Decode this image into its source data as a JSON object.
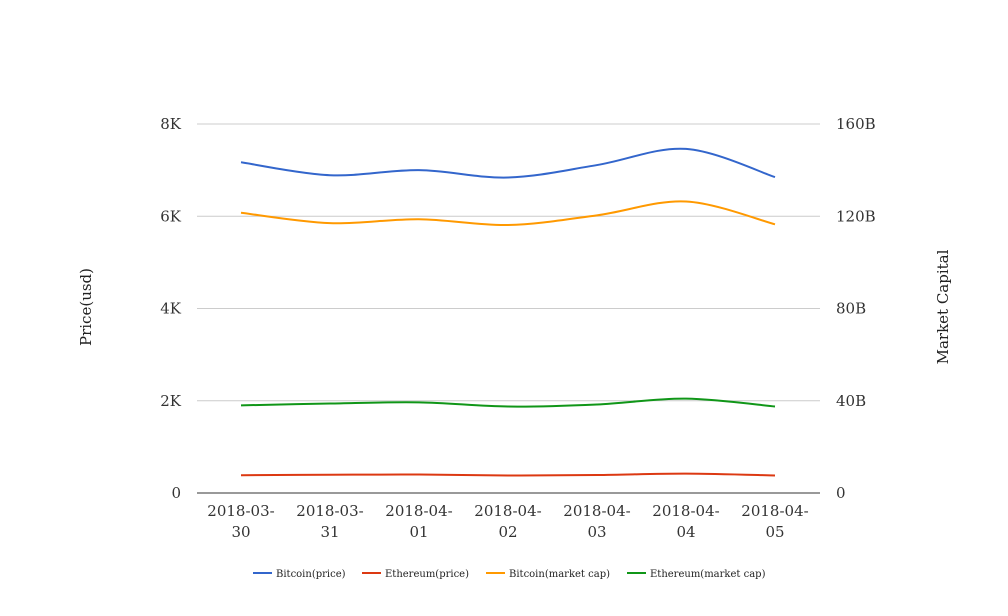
{
  "chart_data": {
    "type": "line",
    "title": "",
    "categories": [
      [
        "2018-03-",
        "30"
      ],
      [
        "2018-03-",
        "31"
      ],
      [
        "2018-04-",
        "01"
      ],
      [
        "2018-04-",
        "02"
      ],
      [
        "2018-04-",
        "03"
      ],
      [
        "2018-04-",
        "04"
      ],
      [
        "2018-04-",
        "05"
      ]
    ],
    "y_left": {
      "label": "Price(usd)",
      "range": [
        0,
        8000
      ],
      "ticks": [
        0,
        2000,
        4000,
        6000,
        8000
      ],
      "tick_labels": [
        "0",
        "2K",
        "4K",
        "6K",
        "8K"
      ]
    },
    "y_right": {
      "label": "Market Capital",
      "range": [
        0,
        160000000000
      ],
      "ticks": [
        0,
        40000000000,
        80000000000,
        120000000000,
        160000000000
      ],
      "tick_labels": [
        "0",
        "40B",
        "80B",
        "120B",
        "160B"
      ]
    },
    "grid": true,
    "legend_position": "bottom",
    "series": [
      {
        "name": "Bitcoin(price)",
        "axis": "left",
        "color": "#3366cc",
        "values": [
          7170,
          6890,
          7000,
          6840,
          7110,
          7460,
          6850
        ]
      },
      {
        "name": "Ethereum(price)",
        "axis": "left",
        "color": "#dc3912",
        "values": [
          385,
          395,
          400,
          380,
          390,
          420,
          380
        ]
      },
      {
        "name": "Bitcoin(market cap)",
        "axis": "right",
        "color": "#ff9900",
        "values": [
          121500000000,
          117000000000,
          118700000000,
          116200000000,
          120400000000,
          126400000000,
          116500000000
        ]
      },
      {
        "name": "Ethereum(market cap)",
        "axis": "right",
        "color": "#109618",
        "values": [
          38000000000,
          38800000000,
          39300000000,
          37500000000,
          38400000000,
          40900000000,
          37500000000
        ]
      }
    ]
  }
}
